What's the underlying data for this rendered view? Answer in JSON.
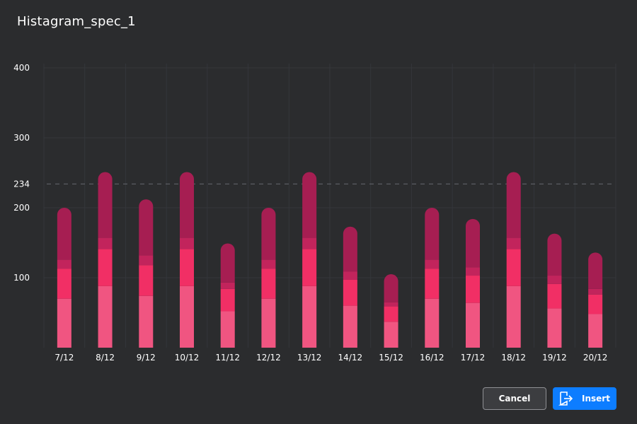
{
  "dialog": {
    "title": "Histagram_spec_1"
  },
  "buttons": {
    "cancel_label": "Cancel",
    "insert_label": "Insert",
    "insert_icon": "insert-export-icon"
  },
  "colors": {
    "background": "#2b2c2e",
    "grid": "#34363b",
    "reference_line": "#5b5d62",
    "segment_base": "#f05581",
    "segment_mid": "#f12f65",
    "segment_band": "#c2245c",
    "segment_top": "#a61e52",
    "accent_button": "#0d7dff"
  },
  "chart_data": {
    "type": "bar",
    "stacked": true,
    "title": "",
    "xlabel": "",
    "ylabel": "",
    "ylim": [
      0,
      400
    ],
    "y_ticks": [
      "100",
      "200",
      "234",
      "300",
      "400"
    ],
    "reference_line": {
      "value": 234,
      "style": "dashed"
    },
    "grid": true,
    "legend": "none",
    "categories": [
      "7/12",
      "8/12",
      "9/12",
      "10/12",
      "11/12",
      "12/12",
      "13/12",
      "14/12",
      "15/12",
      "16/12",
      "17/12",
      "18/12",
      "19/12",
      "20/12"
    ],
    "series": [
      {
        "values": [
          70,
          88,
          74,
          88,
          52,
          70,
          88,
          60,
          37,
          70,
          64,
          88,
          56,
          48
        ]
      },
      {
        "values": [
          43,
          53,
          44,
          53,
          32,
          43,
          53,
          37,
          22,
          43,
          39,
          53,
          35,
          28
        ]
      },
      {
        "values": [
          13,
          16,
          14,
          16,
          9,
          13,
          16,
          12,
          6,
          13,
          12,
          16,
          12,
          8
        ]
      },
      {
        "values": [
          74,
          94,
          80,
          94,
          56,
          74,
          94,
          64,
          40,
          74,
          69,
          94,
          60,
          52
        ]
      }
    ]
  }
}
